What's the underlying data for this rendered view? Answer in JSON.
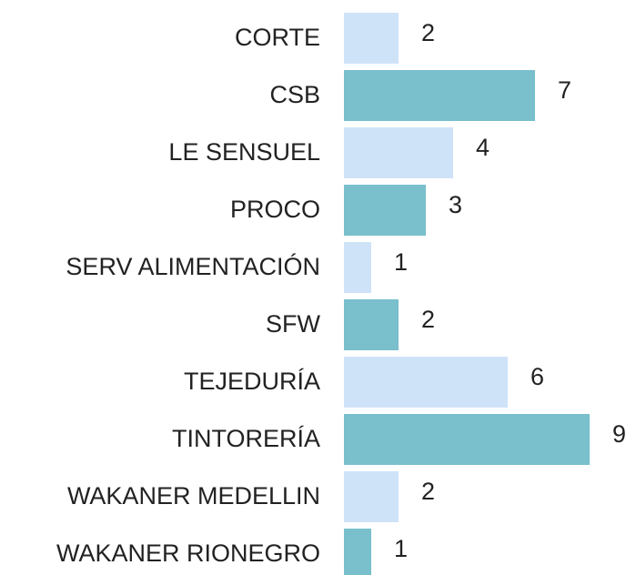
{
  "chart_data": {
    "type": "bar",
    "orientation": "horizontal",
    "categories": [
      "CORTE",
      "CSB",
      "LE SENSUEL",
      "PROCO",
      "SERV ALIMENTACIÓN",
      "SFW",
      "TEJEDURÍA",
      "TINTORERÍA",
      "WAKANER MEDELLIN",
      "WAKANER RIONEGRO"
    ],
    "values": [
      2,
      7,
      4,
      3,
      1,
      2,
      6,
      9,
      2,
      1
    ],
    "colors": [
      "#cfe3f8",
      "#79bfcc",
      "#cfe3f8",
      "#79bfcc",
      "#cfe3f8",
      "#79bfcc",
      "#cfe3f8",
      "#79bfcc",
      "#cfe3f8",
      "#79bfcc"
    ]
  }
}
